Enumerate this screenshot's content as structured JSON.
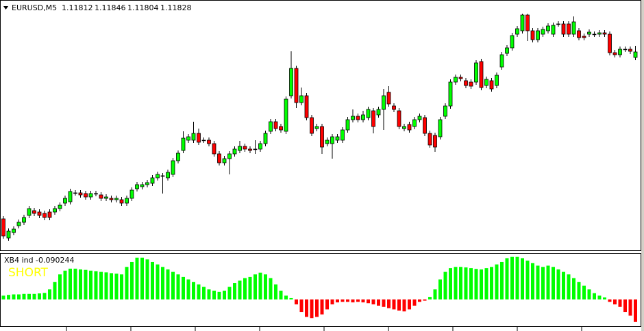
{
  "chart_data": [
    {
      "type": "candlestick",
      "title": "EURUSD,M5",
      "up_color": "#00ff00",
      "down_color": "#ff0000",
      "ylim": [
        1.1125,
        1.1197
      ],
      "open": [
        1.1134,
        1.11284,
        1.113,
        1.1132,
        1.1133,
        1.1135,
        1.11364,
        1.1136,
        1.11356,
        1.1136,
        1.1136,
        1.1137,
        1.11386,
        1.1139,
        1.11416,
        1.11416,
        1.11414,
        1.11404,
        1.11414,
        1.1141,
        1.114,
        1.114,
        1.11396,
        1.11396,
        1.11386,
        1.114,
        1.11428,
        1.11434,
        1.1144,
        1.11444,
        1.1146,
        1.11466,
        1.1146,
        1.1147,
        1.1151,
        1.1154,
        1.1157,
        1.1157,
        1.1159,
        1.1157,
        1.1157,
        1.1156,
        1.1153,
        1.11504,
        1.11516,
        1.1153,
        1.1154,
        1.11552,
        1.11544,
        1.11544,
        1.11544,
        1.1156,
        1.11596,
        1.11624,
        1.1161,
        1.11596,
        1.117,
        1.1178,
        1.1168,
        1.117,
        1.11636,
        1.11604,
        1.1161,
        1.1156,
        1.1156,
        1.1157,
        1.1157,
        1.116,
        1.1163,
        1.1164,
        1.1163,
        1.11636,
        1.11656,
        1.11644,
        1.1166,
        1.1171,
        1.1167,
        1.11656,
        1.11604,
        1.11616,
        1.1161,
        1.1163,
        1.11636,
        1.1159,
        1.11584,
        1.1158,
        1.1164,
        1.1167,
        1.1174,
        1.11754,
        1.11744,
        1.1174,
        1.1174,
        1.118,
        1.1173,
        1.11744,
        1.1173,
        1.11784,
        1.11824,
        1.1184,
        1.1188,
        1.1189,
        1.11936,
        1.1189,
        1.11864,
        1.1188,
        1.1189,
        1.1188,
        1.1191,
        1.1191,
        1.1191,
        1.1188,
        1.1189,
        1.11874,
        1.1188,
        1.1188,
        1.1188,
        1.11884,
        1.1188,
        1.11826,
        1.1182,
        1.11836,
        1.11836,
        1.11812
      ],
      "high": [
        1.11348,
        1.11312,
        1.11318,
        1.11338,
        1.11352,
        1.11378,
        1.11372,
        1.11368,
        1.11364,
        1.11368,
        1.11378,
        1.11388,
        1.11408,
        1.11428,
        1.11424,
        1.11424,
        1.11422,
        1.11422,
        1.11422,
        1.11418,
        1.11412,
        1.11408,
        1.11408,
        1.11404,
        1.11408,
        1.11432,
        1.11448,
        1.11448,
        1.11454,
        1.11468,
        1.11478,
        1.11474,
        1.11484,
        1.11518,
        1.1154,
        1.11596,
        1.11588,
        1.11624,
        1.11604,
        1.11578,
        1.11578,
        1.11568,
        1.11538,
        1.11524,
        1.11538,
        1.11552,
        1.11568,
        1.1156,
        1.11552,
        1.1157,
        1.11568,
        1.11598,
        1.11632,
        1.11632,
        1.11618,
        1.11698,
        1.1183,
        1.11788,
        1.11724,
        1.11708,
        1.11644,
        1.11618,
        1.11618,
        1.11578,
        1.11588,
        1.11588,
        1.11608,
        1.11638,
        1.1166,
        1.11648,
        1.11656,
        1.11668,
        1.11664,
        1.11668,
        1.1172,
        1.11728,
        1.11678,
        1.11664,
        1.11618,
        1.11624,
        1.11638,
        1.11648,
        1.11644,
        1.11598,
        1.11592,
        1.11638,
        1.11678,
        1.11748,
        1.11762,
        1.11762,
        1.11752,
        1.11748,
        1.11804,
        1.11808,
        1.11756,
        1.11752,
        1.11768,
        1.11828,
        1.11848,
        1.11884,
        1.11904,
        1.1194,
        1.1194,
        1.11898,
        1.11898,
        1.11902,
        1.11912,
        1.11914,
        1.11918,
        1.11918,
        1.11918,
        1.11932,
        1.11898,
        1.11882,
        1.11894,
        1.11888,
        1.11892,
        1.11892,
        1.11888,
        1.11834,
        1.11844,
        1.11844,
        1.11844,
        1.11846
      ],
      "low": [
        1.11282,
        1.11276,
        1.11292,
        1.11312,
        1.11322,
        1.11342,
        1.11348,
        1.11342,
        1.11336,
        1.11336,
        1.11352,
        1.11362,
        1.11378,
        1.11382,
        1.11408,
        1.11402,
        1.11396,
        1.11396,
        1.11406,
        1.11392,
        1.11392,
        1.11388,
        1.11388,
        1.11378,
        1.11378,
        1.11392,
        1.1142,
        1.11426,
        1.11432,
        1.11436,
        1.11452,
        1.11414,
        1.11452,
        1.11462,
        1.11502,
        1.11532,
        1.11562,
        1.11562,
        1.11556,
        1.11562,
        1.11552,
        1.11522,
        1.11496,
        1.11496,
        1.1147,
        1.11522,
        1.11532,
        1.11536,
        1.11532,
        1.1153,
        1.11536,
        1.11552,
        1.11588,
        1.11596,
        1.11592,
        1.11588,
        1.11692,
        1.11664,
        1.11672,
        1.11628,
        1.11582,
        1.11596,
        1.1153,
        1.11552,
        1.11516,
        1.11562,
        1.11562,
        1.11592,
        1.11622,
        1.11622,
        1.11622,
        1.11628,
        1.1159,
        1.11636,
        1.116,
        1.11668,
        1.11652,
        1.11602,
        1.11596,
        1.11592,
        1.11602,
        1.11622,
        1.11582,
        1.11548,
        1.11536,
        1.11572,
        1.11632,
        1.11662,
        1.11732,
        1.11742,
        1.11722,
        1.1172,
        1.11732,
        1.11716,
        1.11722,
        1.11712,
        1.11722,
        1.11776,
        1.11816,
        1.11832,
        1.11872,
        1.11882,
        1.1186,
        1.11856,
        1.11856,
        1.11872,
        1.11882,
        1.11872,
        1.11902,
        1.11872,
        1.11872,
        1.11872,
        1.11862,
        1.11862,
        1.11872,
        1.11872,
        1.11872,
        1.11872,
        1.11818,
        1.11812,
        1.11812,
        1.11828,
        1.11822,
        1.11804
      ],
      "close": [
        1.1129,
        1.11304,
        1.1131,
        1.1133,
        1.11344,
        1.1137,
        1.11356,
        1.1135,
        1.11344,
        1.11344,
        1.1137,
        1.1138,
        1.114,
        1.1142,
        1.11416,
        1.1141,
        1.11404,
        1.11414,
        1.11414,
        1.114,
        1.11404,
        1.11396,
        1.114,
        1.11386,
        1.114,
        1.11424,
        1.1144,
        1.1144,
        1.11446,
        1.1146,
        1.1147,
        1.11466,
        1.11476,
        1.1151,
        1.11532,
        1.11576,
        1.1158,
        1.1159,
        1.11564,
        1.1157,
        1.1156,
        1.1153,
        1.11504,
        1.11516,
        1.1153,
        1.11544,
        1.11552,
        1.11544,
        1.1154,
        1.11544,
        1.1156,
        1.1159,
        1.11624,
        1.11604,
        1.116,
        1.1169,
        1.1178,
        1.1168,
        1.117,
        1.11636,
        1.1159,
        1.1161,
        1.1155,
        1.1157,
        1.1158,
        1.1158,
        1.116,
        1.1163,
        1.1164,
        1.1163,
        1.11644,
        1.1166,
        1.1161,
        1.1166,
        1.117,
        1.11676,
        1.1166,
        1.1161,
        1.1161,
        1.116,
        1.1163,
        1.1164,
        1.1159,
        1.11556,
        1.1155,
        1.1163,
        1.1167,
        1.1174,
        1.11754,
        1.1175,
        1.1173,
        1.11728,
        1.11796,
        1.11724,
        1.11748,
        1.1172,
        1.1176,
        1.1182,
        1.1184,
        1.11876,
        1.11896,
        1.11936,
        1.1189,
        1.11864,
        1.1189,
        1.11894,
        1.11904,
        1.11906,
        1.1191,
        1.1188,
        1.1188,
        1.11916,
        1.1187,
        1.1187,
        1.11886,
        1.1188,
        1.11884,
        1.1188,
        1.11826,
        1.1182,
        1.11836,
        1.11836,
        1.1183,
        1.11828
      ]
    },
    {
      "type": "bar",
      "title": "XB4 ind",
      "annotation": "SHORT",
      "up_color": "#00ff00",
      "down_color": "#ff0000",
      "ylim": [
        -0.11,
        0.18
      ],
      "values": [
        0.015,
        0.018,
        0.02,
        0.02,
        0.022,
        0.022,
        0.022,
        0.024,
        0.026,
        0.04,
        0.07,
        0.1,
        0.115,
        0.123,
        0.123,
        0.12,
        0.118,
        0.115,
        0.113,
        0.11,
        0.108,
        0.105,
        0.103,
        0.1,
        0.13,
        0.15,
        0.167,
        0.167,
        0.16,
        0.15,
        0.14,
        0.13,
        0.12,
        0.11,
        0.1,
        0.09,
        0.08,
        0.07,
        0.06,
        0.05,
        0.04,
        0.035,
        0.03,
        0.035,
        0.05,
        0.065,
        0.075,
        0.085,
        0.09,
        0.1,
        0.107,
        0.1,
        0.085,
        0.06,
        0.035,
        0.015,
        0.005,
        -0.02,
        -0.05,
        -0.07,
        -0.075,
        -0.07,
        -0.06,
        -0.04,
        -0.02,
        -0.012,
        -0.01,
        -0.01,
        -0.012,
        -0.01,
        -0.012,
        -0.015,
        -0.02,
        -0.025,
        -0.03,
        -0.035,
        -0.04,
        -0.045,
        -0.048,
        -0.04,
        -0.025,
        -0.01,
        -0.005,
        0.01,
        0.04,
        0.08,
        0.11,
        0.125,
        0.13,
        0.13,
        0.128,
        0.125,
        0.122,
        0.12,
        0.125,
        0.13,
        0.14,
        0.15,
        0.165,
        0.17,
        0.17,
        0.165,
        0.155,
        0.145,
        0.135,
        0.13,
        0.135,
        0.13,
        0.12,
        0.11,
        0.1,
        0.085,
        0.07,
        0.055,
        0.04,
        0.025,
        0.015,
        0.008,
        -0.01,
        -0.02,
        -0.03,
        -0.05,
        -0.065,
        -0.090244
      ]
    }
  ]
}
